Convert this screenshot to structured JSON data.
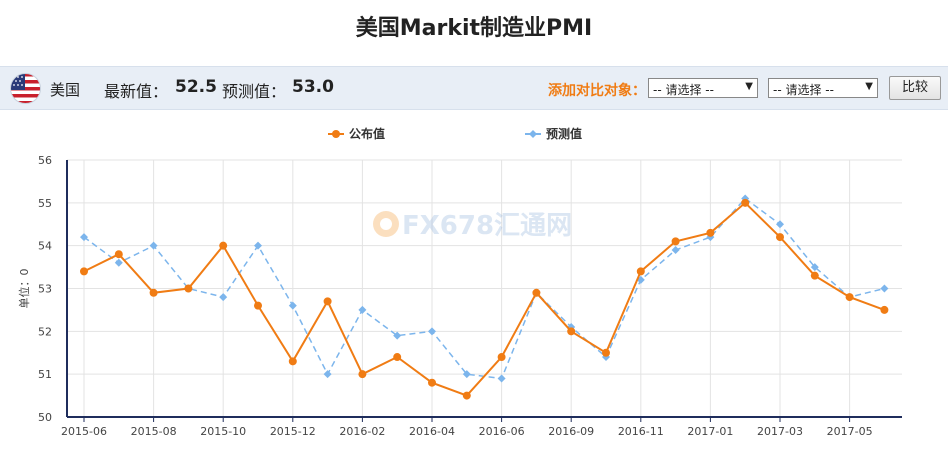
{
  "page": {
    "title": "美国Markit制造业PMI"
  },
  "info": {
    "country": "美国",
    "latest_label": "最新值：",
    "latest_value": "52.5",
    "forecast_label": "预测值：",
    "forecast_value": "53.0",
    "compare_label": "添加对比对象：",
    "select1": "-- 请选择 --",
    "select2": "-- 请选择 --",
    "compare_button": "比较"
  },
  "colors": {
    "published": "#f07c14",
    "forecast": "#7cb5ec"
  },
  "watermark": "FX678汇通网",
  "chart_data": {
    "type": "line",
    "ylabel": "单位：0",
    "ylim": [
      50,
      56
    ],
    "yticks": [
      50,
      51,
      52,
      53,
      54,
      55,
      56
    ],
    "legend_position": "top-center",
    "grid": true,
    "x_tick_labels": [
      "2015-06",
      "2015-08",
      "2015-10",
      "2015-12",
      "2016-02",
      "2016-04",
      "2016-06",
      "2016-09",
      "2016-11",
      "2017-01",
      "2017-03",
      "2017-05"
    ],
    "series": [
      {
        "name": "公布值",
        "style": "solid",
        "values": [
          53.4,
          53.8,
          52.9,
          53.0,
          54.0,
          52.6,
          51.3,
          52.7,
          51.0,
          51.4,
          50.8,
          50.5,
          51.4,
          52.9,
          52.0,
          51.5,
          53.4,
          54.1,
          54.3,
          55.0,
          54.2,
          53.3,
          52.8,
          52.5
        ]
      },
      {
        "name": "预测值",
        "style": "dashed",
        "values": [
          54.2,
          53.6,
          54.0,
          53.0,
          52.8,
          54.0,
          52.6,
          51.0,
          52.5,
          51.9,
          52.0,
          51.0,
          50.9,
          52.9,
          52.1,
          51.4,
          53.2,
          53.9,
          54.2,
          55.1,
          54.5,
          53.5,
          52.8,
          53.0
        ]
      }
    ]
  }
}
